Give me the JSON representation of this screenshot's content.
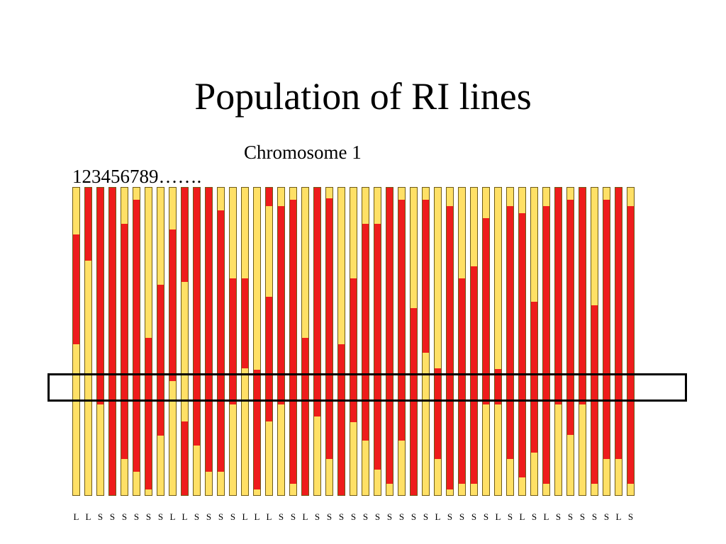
{
  "title": "Population of RI lines",
  "chromosome_label": "Chromosome 1",
  "numbering_label": "123456789…….",
  "colors": {
    "red": "#ee1c1c",
    "yellow": "#ffe066",
    "bar_border": "#6e5a16",
    "highlight_border": "#000000"
  },
  "legend_meaning": {
    "Y": "yellow",
    "R": "red"
  },
  "lines": [
    {
      "genotype": "L",
      "segments": [
        {
          "c": "Y",
          "to": 0.152
        },
        {
          "c": "R",
          "to": 0.51
        },
        {
          "c": "Y",
          "to": 1
        }
      ]
    },
    {
      "genotype": "L",
      "segments": [
        {
          "c": "R",
          "to": 0.237
        },
        {
          "c": "Y",
          "to": 1
        }
      ]
    },
    {
      "genotype": "S",
      "segments": [
        {
          "c": "R",
          "to": 0.704
        },
        {
          "c": "Y",
          "to": 1
        }
      ]
    },
    {
      "genotype": "S",
      "segments": [
        {
          "c": "R",
          "to": 1
        }
      ]
    },
    {
      "genotype": "S",
      "segments": [
        {
          "c": "Y",
          "to": 0.117
        },
        {
          "c": "R",
          "to": 0.883
        },
        {
          "c": "Y",
          "to": 1
        }
      ]
    },
    {
      "genotype": "S",
      "segments": [
        {
          "c": "Y",
          "to": 0.039
        },
        {
          "c": "R",
          "to": 0.923
        },
        {
          "c": "Y",
          "to": 1
        }
      ]
    },
    {
      "genotype": "S",
      "segments": [
        {
          "c": "Y",
          "to": 0.488
        },
        {
          "c": "R",
          "to": 0.982
        },
        {
          "c": "Y",
          "to": 1
        }
      ]
    },
    {
      "genotype": "S",
      "segments": [
        {
          "c": "Y",
          "to": 0.315
        },
        {
          "c": "R",
          "to": 0.806
        },
        {
          "c": "Y",
          "to": 1
        }
      ]
    },
    {
      "genotype": "L",
      "segments": [
        {
          "c": "Y",
          "to": 0.135
        },
        {
          "c": "R",
          "to": 0.628
        },
        {
          "c": "Y",
          "to": 1
        }
      ]
    },
    {
      "genotype": "L",
      "segments": [
        {
          "c": "R",
          "to": 0.306
        },
        {
          "c": "Y",
          "to": 0.761
        },
        {
          "c": "R",
          "to": 1
        }
      ]
    },
    {
      "genotype": "S",
      "segments": [
        {
          "c": "R",
          "to": 0.838
        },
        {
          "c": "Y",
          "to": 1
        }
      ]
    },
    {
      "genotype": "S",
      "segments": [
        {
          "c": "R",
          "to": 0.923
        },
        {
          "c": "Y",
          "to": 1
        }
      ]
    },
    {
      "genotype": "S",
      "segments": [
        {
          "c": "Y",
          "to": 0.074
        },
        {
          "c": "R",
          "to": 0.923
        },
        {
          "c": "Y",
          "to": 1
        }
      ]
    },
    {
      "genotype": "S",
      "segments": [
        {
          "c": "Y",
          "to": 0.295
        },
        {
          "c": "R",
          "to": 0.412
        },
        {
          "c": "R",
          "to": 0.704
        },
        {
          "c": "Y",
          "to": 1
        }
      ]
    },
    {
      "genotype": "L",
      "segments": [
        {
          "c": "Y",
          "to": 0.295
        },
        {
          "c": "R",
          "to": 0.588
        },
        {
          "c": "Y",
          "to": 1
        }
      ]
    },
    {
      "genotype": "L",
      "segments": [
        {
          "c": "Y",
          "to": 0.592
        },
        {
          "c": "R",
          "to": 0.982
        },
        {
          "c": "Y",
          "to": 1
        }
      ]
    },
    {
      "genotype": "L",
      "segments": [
        {
          "c": "R",
          "to": 0.059
        },
        {
          "c": "Y",
          "to": 0.354
        },
        {
          "c": "R",
          "to": 0.761
        },
        {
          "c": "Y",
          "to": 1
        }
      ]
    },
    {
      "genotype": "S",
      "segments": [
        {
          "c": "Y",
          "to": 0.059
        },
        {
          "c": "R",
          "to": 0.704
        },
        {
          "c": "Y",
          "to": 1
        }
      ]
    },
    {
      "genotype": "S",
      "segments": [
        {
          "c": "Y",
          "to": 0.039
        },
        {
          "c": "R",
          "to": 0.963
        },
        {
          "c": "Y",
          "to": 1
        }
      ]
    },
    {
      "genotype": "L",
      "segments": [
        {
          "c": "Y",
          "to": 0.488
        },
        {
          "c": "R",
          "to": 1
        }
      ]
    },
    {
      "genotype": "S",
      "segments": [
        {
          "c": "R",
          "to": 0.744
        },
        {
          "c": "Y",
          "to": 1
        }
      ]
    },
    {
      "genotype": "S",
      "segments": [
        {
          "c": "Y",
          "to": 0.035
        },
        {
          "c": "R",
          "to": 0.882
        },
        {
          "c": "Y",
          "to": 1
        }
      ]
    },
    {
      "genotype": "S",
      "segments": [
        {
          "c": "Y",
          "to": 0.334
        },
        {
          "c": "Y",
          "to": 0.51
        },
        {
          "c": "R",
          "to": 1
        }
      ]
    },
    {
      "genotype": "S",
      "segments": [
        {
          "c": "Y",
          "to": 0.295
        },
        {
          "c": "R",
          "to": 0.763
        },
        {
          "c": "Y",
          "to": 1
        }
      ]
    },
    {
      "genotype": "S",
      "segments": [
        {
          "c": "Y",
          "to": 0.117
        },
        {
          "c": "R",
          "to": 0.823
        },
        {
          "c": "Y",
          "to": 1
        }
      ]
    },
    {
      "genotype": "S",
      "segments": [
        {
          "c": "Y",
          "to": 0.117
        },
        {
          "c": "R",
          "to": 0.918
        },
        {
          "c": "Y",
          "to": 1
        }
      ]
    },
    {
      "genotype": "S",
      "segments": [
        {
          "c": "R",
          "to": 0.963
        },
        {
          "c": "Y",
          "to": 1
        }
      ]
    },
    {
      "genotype": "S",
      "segments": [
        {
          "c": "Y",
          "to": 0.039
        },
        {
          "c": "R",
          "to": 0.785
        },
        {
          "c": "R",
          "to": 0.823
        },
        {
          "c": "Y",
          "to": 1
        }
      ]
    },
    {
      "genotype": "S",
      "segments": [
        {
          "c": "Y",
          "to": 0.295
        },
        {
          "c": "Y",
          "to": 0.392
        },
        {
          "c": "R",
          "to": 1
        }
      ]
    },
    {
      "genotype": "S",
      "segments": [
        {
          "c": "Y",
          "to": 0.039
        },
        {
          "c": "R",
          "to": 0.538
        },
        {
          "c": "Y",
          "to": 1
        }
      ]
    },
    {
      "genotype": "L",
      "segments": [
        {
          "c": "Y",
          "to": 0.588
        },
        {
          "c": "R",
          "to": 0.882
        },
        {
          "c": "Y",
          "to": 1
        }
      ]
    },
    {
      "genotype": "S",
      "segments": [
        {
          "c": "Y",
          "to": 0.059
        },
        {
          "c": "R",
          "to": 0.982
        },
        {
          "c": "Y",
          "to": 1
        }
      ]
    },
    {
      "genotype": "S",
      "segments": [
        {
          "c": "Y",
          "to": 0.295
        },
        {
          "c": "R",
          "to": 0.963
        },
        {
          "c": "Y",
          "to": 1
        }
      ]
    },
    {
      "genotype": "S",
      "segments": [
        {
          "c": "Y",
          "to": 0.255
        },
        {
          "c": "R",
          "to": 0.963
        },
        {
          "c": "Y",
          "to": 1
        }
      ]
    },
    {
      "genotype": "S",
      "segments": [
        {
          "c": "Y",
          "to": 0.098
        },
        {
          "c": "R",
          "to": 0.704
        },
        {
          "c": "Y",
          "to": 1
        }
      ]
    },
    {
      "genotype": "L",
      "segments": [
        {
          "c": "Y",
          "to": 0.59
        },
        {
          "c": "R",
          "to": 0.704
        },
        {
          "c": "Y",
          "to": 1
        }
      ]
    },
    {
      "genotype": "S",
      "segments": [
        {
          "c": "Y",
          "to": 0.059
        },
        {
          "c": "R",
          "to": 0.883
        },
        {
          "c": "Y",
          "to": 1
        }
      ]
    },
    {
      "genotype": "L",
      "segments": [
        {
          "c": "Y",
          "to": 0.083
        },
        {
          "c": "R",
          "to": 0.942
        },
        {
          "c": "Y",
          "to": 1
        }
      ]
    },
    {
      "genotype": "S",
      "segments": [
        {
          "c": "Y",
          "to": 0.372
        },
        {
          "c": "R",
          "to": 0.861
        },
        {
          "c": "Y",
          "to": 1
        }
      ]
    },
    {
      "genotype": "L",
      "segments": [
        {
          "c": "Y",
          "to": 0.059
        },
        {
          "c": "R",
          "to": 0.963
        },
        {
          "c": "Y",
          "to": 1
        }
      ]
    },
    {
      "genotype": "S",
      "segments": [
        {
          "c": "R",
          "to": 0.704
        },
        {
          "c": "Y",
          "to": 1
        }
      ]
    },
    {
      "genotype": "S",
      "segments": [
        {
          "c": "Y",
          "to": 0.039
        },
        {
          "c": "R",
          "to": 0.804
        },
        {
          "c": "Y",
          "to": 1
        }
      ]
    },
    {
      "genotype": "S",
      "segments": [
        {
          "c": "R",
          "to": 0.704
        },
        {
          "c": "Y",
          "to": 1
        }
      ]
    },
    {
      "genotype": "S",
      "segments": [
        {
          "c": "Y",
          "to": 0.382
        },
        {
          "c": "R",
          "to": 0.963
        },
        {
          "c": "Y",
          "to": 1
        }
      ]
    },
    {
      "genotype": "S",
      "segments": [
        {
          "c": "Y",
          "to": 0.039
        },
        {
          "c": "R",
          "to": 0.882
        },
        {
          "c": "Y",
          "to": 1
        }
      ]
    },
    {
      "genotype": "L",
      "segments": [
        {
          "c": "R",
          "to": 0.882
        },
        {
          "c": "Y",
          "to": 1
        }
      ]
    },
    {
      "genotype": "S",
      "segments": [
        {
          "c": "Y",
          "to": 0.059
        },
        {
          "c": "R",
          "to": 0.963
        },
        {
          "c": "Y",
          "to": 1
        }
      ]
    }
  ]
}
